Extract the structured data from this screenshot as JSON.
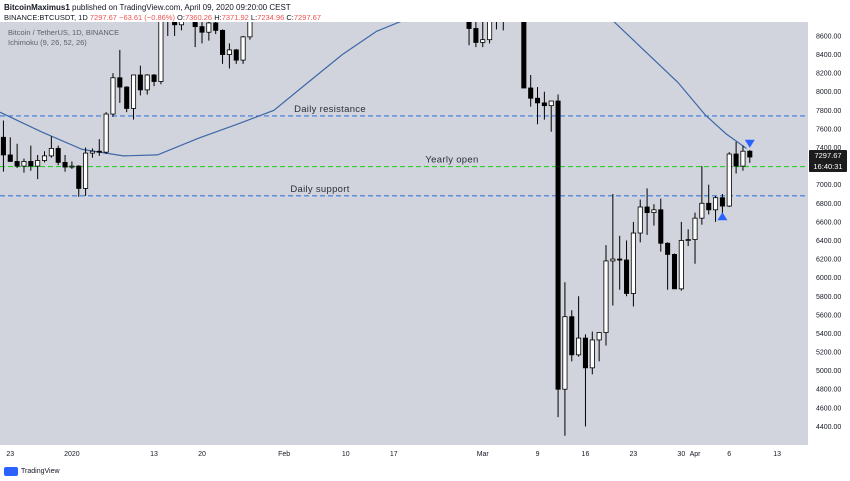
{
  "header": {
    "author": "BitcoinMaximus1",
    "published": "published on TradingView.com, April 09, 2020 09:20:00 CEST",
    "symbol": "BINANCE:BTCUSDT, 1D",
    "last": "7297.67",
    "change": "−63.61 (−0.86%)",
    "o_label": "O:",
    "o": "7360.26",
    "h_label": "H:",
    "h": "7371.92",
    "l_label": "L:",
    "l": "7234.96",
    "c_label": "C:",
    "c": "7297.67"
  },
  "legend": {
    "pair": "Bitcoin / TetherUS, 1D, BINANCE",
    "indicator": "Ichimoku (9, 26, 52, 26)"
  },
  "footer": {
    "brand": "TradingView"
  },
  "price_tag": {
    "price": "7297.67",
    "countdown": "16:40:31"
  },
  "colors": {
    "background": "#d1d4dc",
    "candle_up": "#ffffff",
    "candle_down": "#000000",
    "ichimoku_line": "#3e67a8",
    "resistance_line": "#3d7ae0",
    "support_line": "#3d7ae0",
    "yearly_open_line": "#2ad12a",
    "arrow": "#2962ff",
    "price_tag_bg": "#1c1c1c"
  },
  "chart_data": {
    "type": "candlestick",
    "ylim": [
      4200,
      8750
    ],
    "y_ticks": [
      4400,
      4600,
      4800,
      5000,
      5200,
      5400,
      5600,
      5800,
      6000,
      6200,
      6400,
      6600,
      6800,
      7000,
      7200,
      7400,
      7600,
      7800,
      8000,
      8200,
      8400,
      8600
    ],
    "x_ticks": [
      {
        "label": "23",
        "date": "2019-12-23"
      },
      {
        "label": "2020",
        "date": "2020-01-01"
      },
      {
        "label": "13",
        "date": "2020-01-13"
      },
      {
        "label": "20",
        "date": "2020-01-20"
      },
      {
        "label": "Feb",
        "date": "2020-02-01"
      },
      {
        "label": "10",
        "date": "2020-02-10"
      },
      {
        "label": "17",
        "date": "2020-02-17"
      },
      {
        "label": "Mar",
        "date": "2020-03-01"
      },
      {
        "label": "9",
        "date": "2020-03-09"
      },
      {
        "label": "16",
        "date": "2020-03-16"
      },
      {
        "label": "23",
        "date": "2020-03-23"
      },
      {
        "label": "30",
        "date": "2020-03-30"
      },
      {
        "label": "Apr",
        "date": "2020-04-01"
      },
      {
        "label": "6",
        "date": "2020-04-06"
      },
      {
        "label": "13",
        "date": "2020-04-13"
      }
    ],
    "levels": [
      {
        "label": "Daily resistance",
        "price": 7740,
        "style": "dashed",
        "color": "#3d7ae0"
      },
      {
        "label": "Yearly open",
        "price": 7195,
        "style": "dashed",
        "color": "#2ad12a"
      },
      {
        "label": "Daily support",
        "price": 6880,
        "style": "dashed",
        "color": "#3d7ae0"
      }
    ],
    "candles": [
      {
        "date": "2019-12-22",
        "o": 7510,
        "h": 7690,
        "l": 7140,
        "c": 7320
      },
      {
        "date": "2019-12-23",
        "o": 7320,
        "h": 7510,
        "l": 7270,
        "c": 7250
      },
      {
        "date": "2019-12-24",
        "o": 7250,
        "h": 7440,
        "l": 7180,
        "c": 7200
      },
      {
        "date": "2019-12-25",
        "o": 7200,
        "h": 7280,
        "l": 7130,
        "c": 7250
      },
      {
        "date": "2019-12-26",
        "o": 7250,
        "h": 7420,
        "l": 7150,
        "c": 7200
      },
      {
        "date": "2019-12-27",
        "o": 7200,
        "h": 7320,
        "l": 7060,
        "c": 7260
      },
      {
        "date": "2019-12-28",
        "o": 7260,
        "h": 7360,
        "l": 7240,
        "c": 7310
      },
      {
        "date": "2019-12-29",
        "o": 7310,
        "h": 7520,
        "l": 7290,
        "c": 7390
      },
      {
        "date": "2019-12-30",
        "o": 7390,
        "h": 7420,
        "l": 7210,
        "c": 7240
      },
      {
        "date": "2019-12-31",
        "o": 7240,
        "h": 7320,
        "l": 7140,
        "c": 7190
      },
      {
        "date": "2020-01-01",
        "o": 7195,
        "h": 7250,
        "l": 7170,
        "c": 7200
      },
      {
        "date": "2020-01-02",
        "o": 7200,
        "h": 7210,
        "l": 6870,
        "c": 6960
      },
      {
        "date": "2020-01-03",
        "o": 6960,
        "h": 7400,
        "l": 6880,
        "c": 7340
      },
      {
        "date": "2020-01-04",
        "o": 7340,
        "h": 7390,
        "l": 7290,
        "c": 7360
      },
      {
        "date": "2020-01-05",
        "o": 7360,
        "h": 7490,
        "l": 7310,
        "c": 7350
      },
      {
        "date": "2020-01-06",
        "o": 7350,
        "h": 7780,
        "l": 7330,
        "c": 7760
      },
      {
        "date": "2020-01-07",
        "o": 7760,
        "h": 8200,
        "l": 7730,
        "c": 8150
      },
      {
        "date": "2020-01-08",
        "o": 8150,
        "h": 8450,
        "l": 7880,
        "c": 8050
      },
      {
        "date": "2020-01-09",
        "o": 8050,
        "h": 8060,
        "l": 7780,
        "c": 7820
      },
      {
        "date": "2020-01-10",
        "o": 7820,
        "h": 8180,
        "l": 7700,
        "c": 8180
      },
      {
        "date": "2020-01-11",
        "o": 8180,
        "h": 8280,
        "l": 7960,
        "c": 8020
      },
      {
        "date": "2020-01-12",
        "o": 8020,
        "h": 8190,
        "l": 7970,
        "c": 8180
      },
      {
        "date": "2020-01-13",
        "o": 8180,
        "h": 8190,
        "l": 8060,
        "c": 8110
      },
      {
        "date": "2020-01-14",
        "o": 8110,
        "h": 8880,
        "l": 8080,
        "c": 8820
      },
      {
        "date": "2020-01-15",
        "o": 8820,
        "h": 8900,
        "l": 8600,
        "c": 8810
      },
      {
        "date": "2020-01-16",
        "o": 8810,
        "h": 8840,
        "l": 8600,
        "c": 8720
      },
      {
        "date": "2020-01-17",
        "o": 8720,
        "h": 9000,
        "l": 8660,
        "c": 8900
      },
      {
        "date": "2020-01-18",
        "o": 8900,
        "h": 9000,
        "l": 8800,
        "c": 8920
      },
      {
        "date": "2020-01-19",
        "o": 8920,
        "h": 9180,
        "l": 8480,
        "c": 8700
      },
      {
        "date": "2020-01-20",
        "o": 8700,
        "h": 8750,
        "l": 8520,
        "c": 8640
      },
      {
        "date": "2020-01-21",
        "o": 8640,
        "h": 8780,
        "l": 8550,
        "c": 8740
      },
      {
        "date": "2020-01-22",
        "o": 8740,
        "h": 8800,
        "l": 8620,
        "c": 8660
      },
      {
        "date": "2020-01-23",
        "o": 8660,
        "h": 8670,
        "l": 8300,
        "c": 8400
      },
      {
        "date": "2020-01-24",
        "o": 8400,
        "h": 8520,
        "l": 8250,
        "c": 8450
      },
      {
        "date": "2020-01-25",
        "o": 8450,
        "h": 8460,
        "l": 8300,
        "c": 8340
      },
      {
        "date": "2020-01-26",
        "o": 8340,
        "h": 8600,
        "l": 8300,
        "c": 8590
      },
      {
        "date": "2020-01-27",
        "o": 8590,
        "h": 8980,
        "l": 8560,
        "c": 8900
      },
      {
        "date": "2020-01-28",
        "o": 8900,
        "h": 9400,
        "l": 8870,
        "c": 9380
      },
      {
        "date": "2020-02-28",
        "o": 8780,
        "h": 8890,
        "l": 8500,
        "c": 8680
      },
      {
        "date": "2020-02-29",
        "o": 8680,
        "h": 8750,
        "l": 8480,
        "c": 8530
      },
      {
        "date": "2020-03-01",
        "o": 8530,
        "h": 8760,
        "l": 8480,
        "c": 8560
      },
      {
        "date": "2020-03-02",
        "o": 8560,
        "h": 8900,
        "l": 8520,
        "c": 8880
      },
      {
        "date": "2020-03-03",
        "o": 8880,
        "h": 8900,
        "l": 8670,
        "c": 8760
      },
      {
        "date": "2020-03-04",
        "o": 8760,
        "h": 8840,
        "l": 8660,
        "c": 8780
      },
      {
        "date": "2020-03-07",
        "o": 9000,
        "h": 9050,
        "l": 8050,
        "c": 8040
      },
      {
        "date": "2020-03-08",
        "o": 8040,
        "h": 8180,
        "l": 7840,
        "c": 7930
      },
      {
        "date": "2020-03-09",
        "o": 7930,
        "h": 8050,
        "l": 7650,
        "c": 7880
      },
      {
        "date": "2020-03-10",
        "o": 7880,
        "h": 8000,
        "l": 7700,
        "c": 7850
      },
      {
        "date": "2020-03-11",
        "o": 7850,
        "h": 7880,
        "l": 7570,
        "c": 7900
      },
      {
        "date": "2020-03-12",
        "o": 7900,
        "h": 7970,
        "l": 4500,
        "c": 4800
      },
      {
        "date": "2020-03-13",
        "o": 4800,
        "h": 5950,
        "l": 4300,
        "c": 5580
      },
      {
        "date": "2020-03-14",
        "o": 5580,
        "h": 5650,
        "l": 5100,
        "c": 5170
      },
      {
        "date": "2020-03-15",
        "o": 5170,
        "h": 5800,
        "l": 5150,
        "c": 5350
      },
      {
        "date": "2020-03-16",
        "o": 5350,
        "h": 5390,
        "l": 4400,
        "c": 5030
      },
      {
        "date": "2020-03-17",
        "o": 5030,
        "h": 5420,
        "l": 4960,
        "c": 5330
      },
      {
        "date": "2020-03-18",
        "o": 5330,
        "h": 5410,
        "l": 5100,
        "c": 5410
      },
      {
        "date": "2020-03-19",
        "o": 5410,
        "h": 6350,
        "l": 5270,
        "c": 6180
      },
      {
        "date": "2020-03-20",
        "o": 6180,
        "h": 6900,
        "l": 5700,
        "c": 6200
      },
      {
        "date": "2020-03-21",
        "o": 6200,
        "h": 6450,
        "l": 5870,
        "c": 6190
      },
      {
        "date": "2020-03-22",
        "o": 6190,
        "h": 6400,
        "l": 5800,
        "c": 5830
      },
      {
        "date": "2020-03-23",
        "o": 5830,
        "h": 6600,
        "l": 5690,
        "c": 6480
      },
      {
        "date": "2020-03-24",
        "o": 6480,
        "h": 6840,
        "l": 6380,
        "c": 6760
      },
      {
        "date": "2020-03-25",
        "o": 6760,
        "h": 6960,
        "l": 6460,
        "c": 6700
      },
      {
        "date": "2020-03-26",
        "o": 6700,
        "h": 6790,
        "l": 6560,
        "c": 6730
      },
      {
        "date": "2020-03-27",
        "o": 6730,
        "h": 6850,
        "l": 6280,
        "c": 6370
      },
      {
        "date": "2020-03-28",
        "o": 6370,
        "h": 6380,
        "l": 5870,
        "c": 6250
      },
      {
        "date": "2020-03-29",
        "o": 6250,
        "h": 6260,
        "l": 5880,
        "c": 5880
      },
      {
        "date": "2020-03-30",
        "o": 5880,
        "h": 6600,
        "l": 5860,
        "c": 6400
      },
      {
        "date": "2020-03-31",
        "o": 6400,
        "h": 6520,
        "l": 6340,
        "c": 6410
      },
      {
        "date": "2020-04-01",
        "o": 6410,
        "h": 6700,
        "l": 6150,
        "c": 6640
      },
      {
        "date": "2020-04-02",
        "o": 6640,
        "h": 7200,
        "l": 6570,
        "c": 6800
      },
      {
        "date": "2020-04-03",
        "o": 6800,
        "h": 7000,
        "l": 6680,
        "c": 6730
      },
      {
        "date": "2020-04-04",
        "o": 6730,
        "h": 6880,
        "l": 6600,
        "c": 6860
      },
      {
        "date": "2020-04-05",
        "o": 6860,
        "h": 6900,
        "l": 6680,
        "c": 6770
      },
      {
        "date": "2020-04-06",
        "o": 6770,
        "h": 7350,
        "l": 6760,
        "c": 7330
      },
      {
        "date": "2020-04-07",
        "o": 7330,
        "h": 7460,
        "l": 7120,
        "c": 7200
      },
      {
        "date": "2020-04-08",
        "o": 7200,
        "h": 7420,
        "l": 7150,
        "c": 7360
      },
      {
        "date": "2020-04-09",
        "o": 7360.26,
        "h": 7371.92,
        "l": 7234.96,
        "c": 7297.67
      }
    ],
    "ichimoku_line": [
      {
        "date": "2019-12-22",
        "v": 7780
      },
      {
        "date": "2019-12-28",
        "v": 7570
      },
      {
        "date": "2020-01-03",
        "v": 7380
      },
      {
        "date": "2020-01-09",
        "v": 7310
      },
      {
        "date": "2020-01-14",
        "v": 7320
      },
      {
        "date": "2020-01-20",
        "v": 7500
      },
      {
        "date": "2020-01-26",
        "v": 7660
      },
      {
        "date": "2020-01-31",
        "v": 7800
      },
      {
        "date": "2020-02-05",
        "v": 8100
      },
      {
        "date": "2020-02-10",
        "v": 8400
      },
      {
        "date": "2020-02-15",
        "v": 8650
      },
      {
        "date": "2020-02-20",
        "v": 8800
      },
      {
        "date": "2020-03-20",
        "v": 8800
      },
      {
        "date": "2020-03-25",
        "v": 8450
      },
      {
        "date": "2020-03-30",
        "v": 8100
      },
      {
        "date": "2020-04-03",
        "v": 7750
      },
      {
        "date": "2020-04-06",
        "v": 7550
      },
      {
        "date": "2020-04-09",
        "v": 7390
      }
    ],
    "arrows": [
      {
        "date": "2020-04-05",
        "price": 6660,
        "direction": "up"
      },
      {
        "date": "2020-04-09",
        "price": 7440,
        "direction": "down"
      }
    ]
  }
}
